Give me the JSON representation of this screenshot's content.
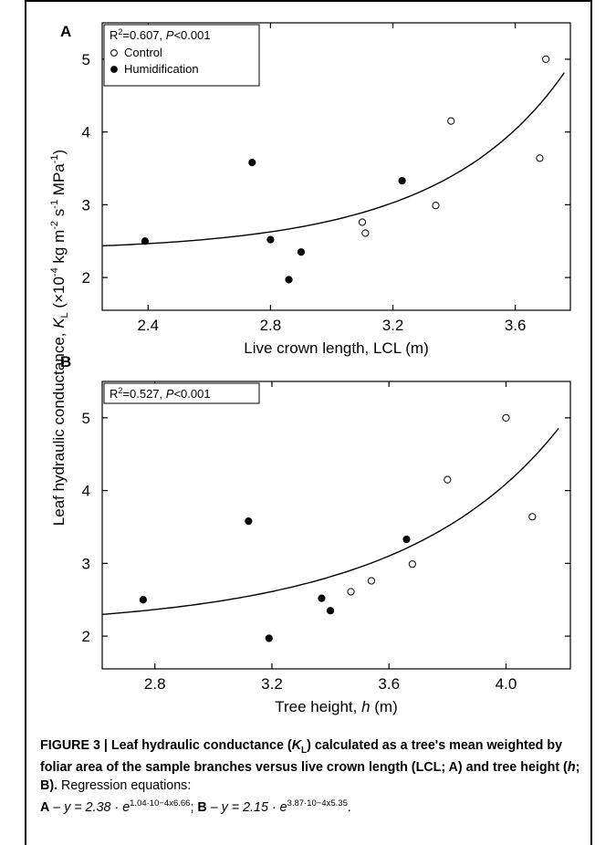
{
  "panels": [
    {
      "letter": "A",
      "stats": {
        "r2_label": "R",
        "r2_sup": "2",
        "r2_value": "=0.607, ",
        "p_italic": "P",
        "p_value": "<0.001"
      },
      "legend": [
        {
          "label": "Control",
          "marker": "open"
        },
        {
          "label": "Humidification",
          "marker": "filled"
        }
      ],
      "xlabel": {
        "text": "Live crown length,  LCL (m)"
      }
    },
    {
      "letter": "B",
      "stats": {
        "r2_label": "R",
        "r2_sup": "2",
        "r2_value": "=0.527, ",
        "p_italic": "P",
        "p_value": "<0.001"
      },
      "xlabel": {
        "text": "Tree height, ",
        "italic": "h",
        "unit": " (m)"
      }
    }
  ],
  "shared_ylabel": {
    "pre": "Leaf hydraulic conductance, ",
    "k": "K",
    "k_sub": "L",
    "mid": "  (×10",
    "exp1": "-4",
    "unit1": " kg m",
    "exp2": "-2",
    "unit2": " s",
    "exp3": "-1",
    "unit3": " MPa",
    "exp4": "-1",
    "close": ")"
  },
  "chart_data": [
    {
      "type": "scatter",
      "panel": "A",
      "xlim": [
        2.25,
        3.78
      ],
      "ylim": [
        1.55,
        5.5
      ],
      "xticks": [
        2.4,
        2.8,
        3.2,
        3.6
      ],
      "xtick_labels": [
        "2.4",
        "2.8",
        "3.2",
        "3.6"
      ],
      "yticks": [
        2,
        3,
        4,
        5
      ],
      "ytick_labels": [
        "2",
        "3",
        "4",
        "5"
      ],
      "series": [
        {
          "name": "Control",
          "marker": "open",
          "points": [
            [
              3.1,
              2.76
            ],
            [
              3.11,
              2.61
            ],
            [
              3.34,
              2.99
            ],
            [
              3.39,
              4.15
            ],
            [
              3.68,
              3.64
            ],
            [
              3.7,
              5.0
            ]
          ]
        },
        {
          "name": "Humidification",
          "marker": "filled",
          "points": [
            [
              2.39,
              2.5
            ],
            [
              2.74,
              3.58
            ],
            [
              2.8,
              2.52
            ],
            [
              2.86,
              1.97
            ],
            [
              2.9,
              2.35
            ],
            [
              3.23,
              3.33
            ]
          ]
        }
      ],
      "fit": {
        "a": 2.38,
        "b": 0.000104,
        "c": 6.66,
        "x_range": [
          2.25,
          3.76
        ]
      }
    },
    {
      "type": "scatter",
      "panel": "B",
      "xlim": [
        2.62,
        4.22
      ],
      "ylim": [
        1.55,
        5.5
      ],
      "xticks": [
        2.8,
        3.2,
        3.6,
        4.0
      ],
      "xtick_labels": [
        "2.8",
        "3.2",
        "3.6",
        "4.0"
      ],
      "yticks": [
        2,
        3,
        4,
        5
      ],
      "ytick_labels": [
        "2",
        "3",
        "4",
        "5"
      ],
      "series": [
        {
          "name": "Control",
          "marker": "open",
          "points": [
            [
              3.47,
              2.61
            ],
            [
              3.54,
              2.76
            ],
            [
              3.68,
              2.99
            ],
            [
              3.8,
              4.15
            ],
            [
              4.0,
              5.0
            ],
            [
              4.09,
              3.64
            ]
          ]
        },
        {
          "name": "Humidification",
          "marker": "filled",
          "points": [
            [
              2.76,
              2.5
            ],
            [
              3.12,
              3.58
            ],
            [
              3.19,
              1.97
            ],
            [
              3.37,
              2.52
            ],
            [
              3.4,
              2.35
            ],
            [
              3.66,
              3.33
            ]
          ]
        }
      ],
      "fit": {
        "a": 2.15,
        "b": 0.000387,
        "c": 5.35,
        "x_range": [
          2.62,
          4.18
        ]
      }
    }
  ],
  "caption": {
    "bold": "FIGURE 3 | Leaf hydraulic conductance (",
    "bold_k": "K",
    "bold_k_sub": "L",
    "bold2": ") calculated as a tree's mean weighted by foliar area of the sample branches versus live crown length (LCL; A) and tree height (",
    "bold_h": "h",
    "bold3": "; B).",
    "normal": " Regression equations:",
    "eq_a_label": "A",
    "eq_a_text": " – y = 2.38 · e",
    "eq_a_exp": "1.04·10−4x6.66",
    "sep": "; ",
    "eq_b_label": "B",
    "eq_b_text": " – y = 2.15 · e",
    "eq_b_exp": "3.87·10−4x5.35",
    "end": "."
  }
}
